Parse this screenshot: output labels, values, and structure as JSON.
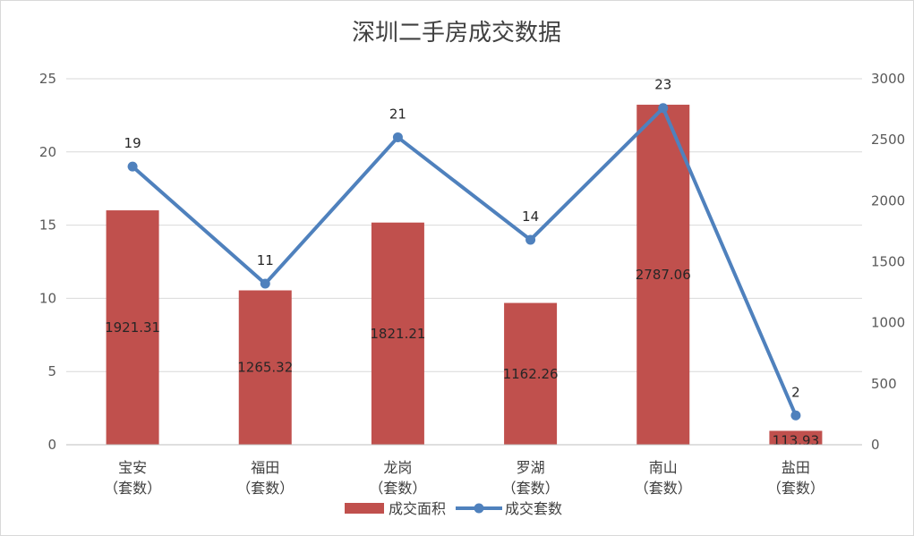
{
  "chart_data": {
    "type": "bar+line",
    "title": "深圳二手房成交数据",
    "categories": [
      [
        "宝安",
        "（套数）"
      ],
      [
        "福田",
        "（套数）"
      ],
      [
        "龙岗",
        "（套数）"
      ],
      [
        "罗湖",
        "（套数）"
      ],
      [
        "南山",
        "（套数）"
      ],
      [
        "盐田",
        "（套数）"
      ]
    ],
    "series": [
      {
        "name": "成交面积",
        "type": "bar",
        "axis": "right",
        "values": [
          1921.31,
          1265.32,
          1821.21,
          1162.26,
          2787.06,
          113.93
        ],
        "labels": [
          "1921.31",
          "1265.32",
          "1821.21",
          "1162.26",
          "2787.06",
          "113.93"
        ],
        "color": "#c0504d"
      },
      {
        "name": "成交套数",
        "type": "line",
        "axis": "left",
        "values": [
          19,
          11,
          21,
          14,
          23,
          2
        ],
        "labels": [
          "19",
          "11",
          "21",
          "14",
          "23",
          "2"
        ],
        "color": "#4f81bd"
      }
    ],
    "y_left": {
      "min": 0,
      "max": 25,
      "ticks": [
        "0",
        "5",
        "10",
        "15",
        "20",
        "25"
      ]
    },
    "y_right": {
      "min": 0,
      "max": 3000,
      "ticks": [
        "0",
        "500",
        "1000",
        "1500",
        "2000",
        "2500",
        "3000"
      ]
    },
    "grid": true,
    "legend_position": "bottom"
  }
}
